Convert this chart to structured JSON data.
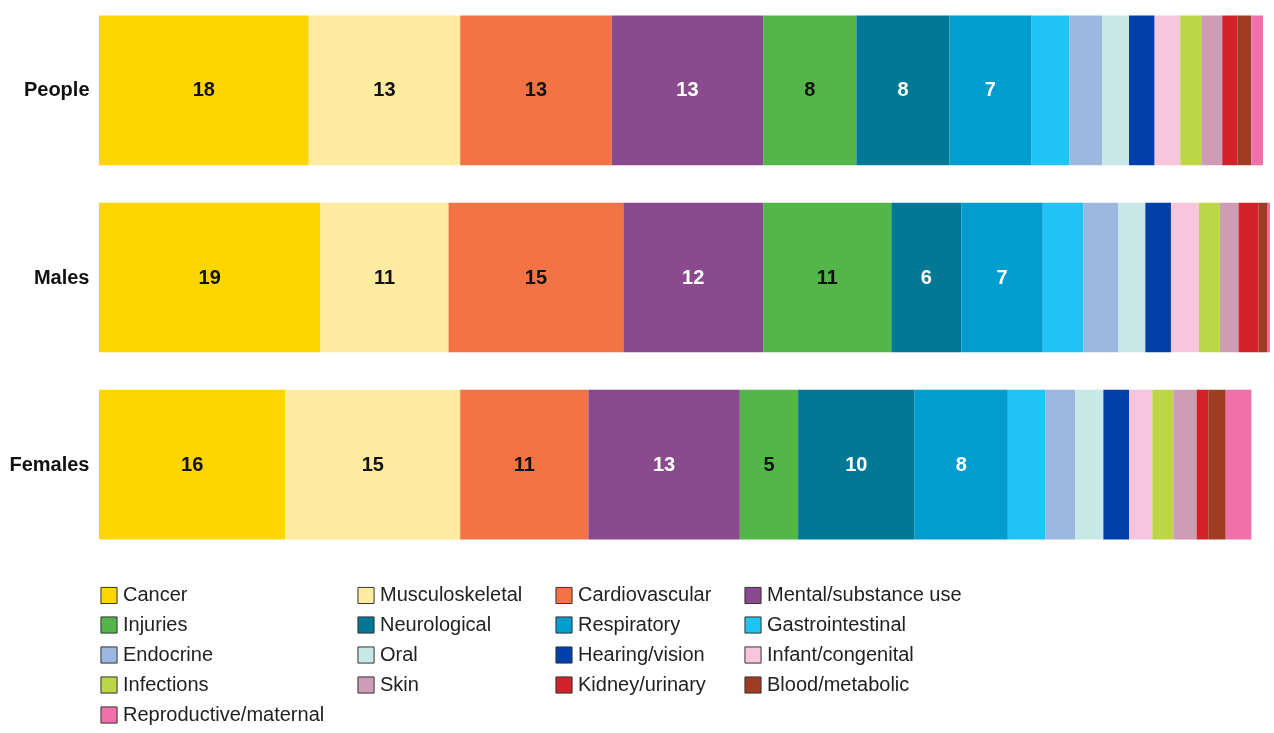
{
  "chart_data": {
    "type": "bar",
    "orientation": "horizontal",
    "stacked": true,
    "legend": "bottom",
    "categories": [
      "People",
      "Males",
      "Females"
    ],
    "series": [
      {
        "name": "Cancer",
        "color": "#fdd500",
        "values": [
          18,
          19,
          16
        ],
        "value_labels": [
          "18",
          "19",
          "16"
        ]
      },
      {
        "name": "Musculoskeletal",
        "color": "#fdeca0",
        "values": [
          13,
          11,
          15
        ],
        "value_labels": [
          "13",
          "11",
          "15"
        ]
      },
      {
        "name": "Cardiovascular",
        "color": "#f37344",
        "values": [
          13,
          15,
          11
        ],
        "value_labels": [
          "13",
          "15",
          "11"
        ]
      },
      {
        "name": "Mental/substance use",
        "color": "#8a4a8e",
        "values": [
          13,
          12,
          13
        ],
        "value_labels": [
          "13",
          "12",
          "13"
        ]
      },
      {
        "name": "Injuries",
        "color": "#52b748",
        "values": [
          8,
          11,
          5
        ],
        "value_labels": [
          "8",
          "11",
          "5"
        ]
      },
      {
        "name": "Neurological",
        "color": "#007896",
        "values": [
          8,
          6,
          10
        ],
        "value_labels": [
          "8",
          "6",
          "10"
        ]
      },
      {
        "name": "Respiratory",
        "color": "#009dce",
        "values": [
          7,
          7,
          8
        ],
        "value_labels": [
          "7",
          "7",
          "8"
        ]
      },
      {
        "name": "Gastrointestinal",
        "color": "#20c4f4",
        "values": [
          3.3,
          3.5,
          3.2
        ]
      },
      {
        "name": "Endocrine",
        "color": "#9db8e0",
        "values": [
          2.8,
          3.0,
          2.6
        ]
      },
      {
        "name": "Oral",
        "color": "#c8e8e6",
        "values": [
          2.3,
          2.3,
          2.4
        ]
      },
      {
        "name": "Hearing/vision",
        "color": "#0040a8",
        "values": [
          2.2,
          2.2,
          2.2
        ]
      },
      {
        "name": "Infant/congenital",
        "color": "#f8c6dc",
        "values": [
          2.2,
          2.4,
          2.0
        ]
      },
      {
        "name": "Infections",
        "color": "#bcd646",
        "values": [
          1.8,
          1.8,
          1.8
        ]
      },
      {
        "name": "Skin",
        "color": "#ce9cb4",
        "values": [
          1.8,
          1.6,
          2.0
        ]
      },
      {
        "name": "Kidney/urinary",
        "color": "#d2232a",
        "values": [
          1.3,
          1.7,
          1.0
        ]
      },
      {
        "name": "Blood/metabolic",
        "color": "#a03c24",
        "values": [
          1.2,
          0.8,
          1.5
        ]
      },
      {
        "name": "Reproductive/maternal",
        "color": "#f070aa",
        "values": [
          1.0,
          0.2,
          2.2
        ]
      }
    ]
  }
}
